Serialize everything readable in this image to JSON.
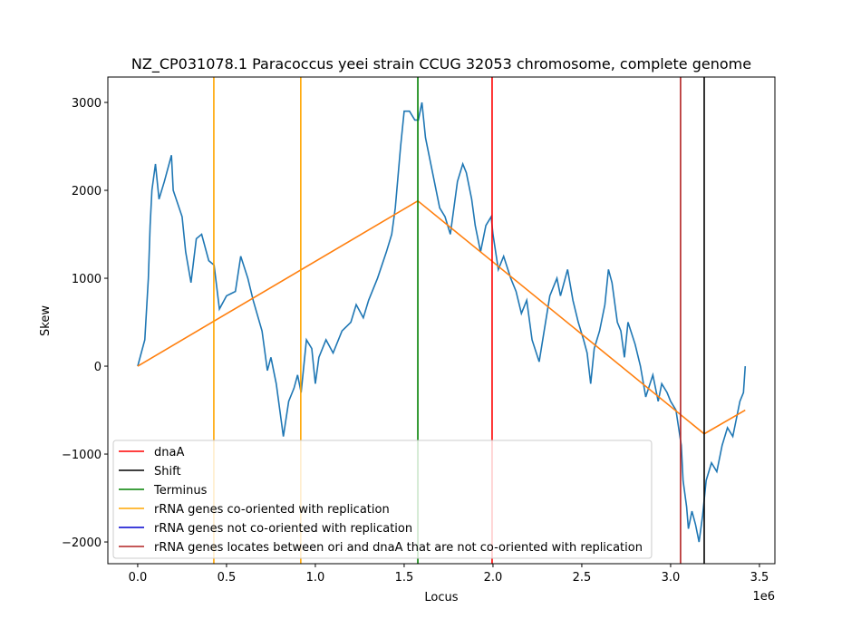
{
  "chart_data": {
    "type": "line",
    "title": "NZ_CP031078.1 Paracoccus yeei strain CCUG 32053 chromosome, complete genome",
    "x_label": "Locus",
    "y_label": "Skew",
    "x_offset_label": "1e6",
    "xlim": [
      -168000,
      3587000
    ],
    "ylim": [
      -2247,
      3289
    ],
    "xticks": [
      {
        "value": 0,
        "label": "0.0"
      },
      {
        "value": 500000,
        "label": "0.5"
      },
      {
        "value": 1000000,
        "label": "1.0"
      },
      {
        "value": 1500000,
        "label": "1.5"
      },
      {
        "value": 2000000,
        "label": "2.0"
      },
      {
        "value": 2500000,
        "label": "2.5"
      },
      {
        "value": 3000000,
        "label": "3.0"
      },
      {
        "value": 3500000,
        "label": "3.5"
      }
    ],
    "yticks": [
      {
        "value": -2000,
        "label": "−2000"
      },
      {
        "value": -1000,
        "label": "−1000"
      },
      0,
      1000,
      2000,
      3000
    ],
    "legend": "lower left",
    "series": [
      {
        "color": "#1f77b4",
        "x": [
          0,
          20000,
          40000,
          60000,
          70000,
          80000,
          100000,
          120000,
          150000,
          190000,
          200000,
          250000,
          270000,
          300000,
          330000,
          360000,
          400000,
          430000,
          460000,
          500000,
          550000,
          580000,
          620000,
          650000,
          700000,
          730000,
          750000,
          780000,
          800000,
          820000,
          850000,
          880000,
          900000,
          920000,
          950000,
          980000,
          1000000,
          1020000,
          1060000,
          1100000,
          1150000,
          1200000,
          1230000,
          1270000,
          1300000,
          1350000,
          1400000,
          1430000,
          1450000,
          1480000,
          1500000,
          1530000,
          1560000,
          1580000,
          1600000,
          1620000,
          1650000,
          1680000,
          1700000,
          1730000,
          1760000,
          1800000,
          1830000,
          1850000,
          1880000,
          1900000,
          1930000,
          1960000,
          1990000,
          2000000,
          2030000,
          2060000,
          2100000,
          2130000,
          2160000,
          2190000,
          2220000,
          2260000,
          2280000,
          2320000,
          2360000,
          2380000,
          2420000,
          2450000,
          2480000,
          2510000,
          2530000,
          2550000,
          2570000,
          2600000,
          2630000,
          2650000,
          2670000,
          2700000,
          2720000,
          2740000,
          2760000,
          2800000,
          2830000,
          2860000,
          2900000,
          2930000,
          2950000,
          2980000,
          3000000,
          3030000,
          3060000,
          3070000,
          3090000,
          3100000,
          3120000,
          3140000,
          3160000,
          3180000,
          3200000,
          3230000,
          3260000,
          3290000,
          3320000,
          3350000,
          3370000,
          3390000,
          3410000,
          3420000
        ],
        "values": [
          0,
          150,
          300,
          1000,
          1600,
          2000,
          2300,
          1900,
          2100,
          2400,
          2000,
          1700,
          1300,
          950,
          1450,
          1500,
          1200,
          1150,
          650,
          800,
          850,
          1250,
          1000,
          750,
          400,
          -50,
          100,
          -200,
          -500,
          -800,
          -400,
          -250,
          -100,
          -300,
          300,
          200,
          -200,
          100,
          300,
          150,
          400,
          500,
          700,
          550,
          750,
          1000,
          1300,
          1500,
          1800,
          2500,
          2900,
          2900,
          2800,
          2800,
          3000,
          2600,
          2300,
          2000,
          1800,
          1700,
          1500,
          2100,
          2300,
          2200,
          1900,
          1600,
          1300,
          1600,
          1700,
          1500,
          1100,
          1250,
          1000,
          850,
          600,
          750,
          300,
          50,
          300,
          800,
          1000,
          800,
          1100,
          750,
          500,
          300,
          150,
          -200,
          200,
          400,
          700,
          1100,
          950,
          500,
          400,
          100,
          500,
          250,
          0,
          -350,
          -100,
          -400,
          -200,
          -300,
          -400,
          -500,
          -900,
          -1300,
          -1600,
          -1850,
          -1650,
          -1800,
          -2000,
          -1700,
          -1300,
          -1100,
          -1200,
          -900,
          -700,
          -800,
          -600,
          -400,
          -300,
          0
        ]
      },
      {
        "color": "#ff7f0e",
        "x": [
          0,
          1577000,
          3189000,
          3420000
        ],
        "values": [
          0,
          1880,
          -770,
          -500
        ]
      }
    ],
    "vlines": [
      {
        "name": "dnaA",
        "color": "#ff0000",
        "x": [
          1995000
        ]
      },
      {
        "name": "Shift",
        "color": "#000000",
        "x": [
          3189000
        ]
      },
      {
        "name": "Terminus",
        "color": "#008000",
        "x": [
          1577000
        ]
      },
      {
        "name": "rRNA genes co-oriented with replication",
        "color": "#ffa500",
        "x": [
          428600,
          918000
        ]
      },
      {
        "name": "rRNA genes not co-oriented with replication",
        "color": "#0000cd",
        "x": []
      },
      {
        "name": "rRNA genes locates between ori and dnaA that are not co-oriented with replication",
        "color": "#b22222",
        "x": [
          3056000
        ]
      }
    ]
  }
}
